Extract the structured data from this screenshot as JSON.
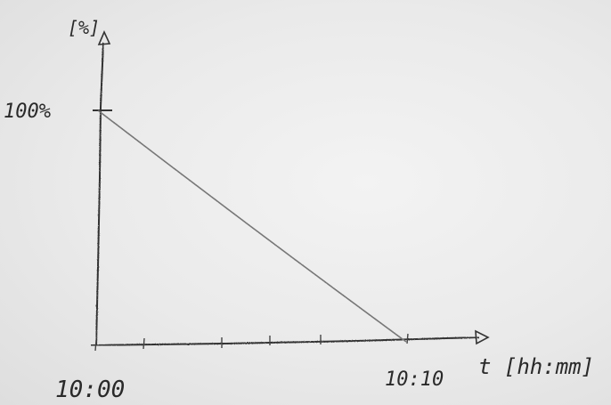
{
  "chart_data": {
    "type": "line",
    "title": "",
    "xlabel": "t [hh:mm]",
    "ylabel": "[%]",
    "x_tick_labels": [
      "10:00",
      "10:10"
    ],
    "y_tick_labels": [
      "100%"
    ],
    "x_minutes_range": [
      0,
      10
    ],
    "y_range_percent": [
      0,
      100
    ],
    "series": [
      {
        "x": [
          "10:00",
          "10:10"
        ],
        "y": [
          100,
          0
        ]
      }
    ],
    "grid": false,
    "legend": "none",
    "style": "hand-drawn pencil sketch"
  }
}
